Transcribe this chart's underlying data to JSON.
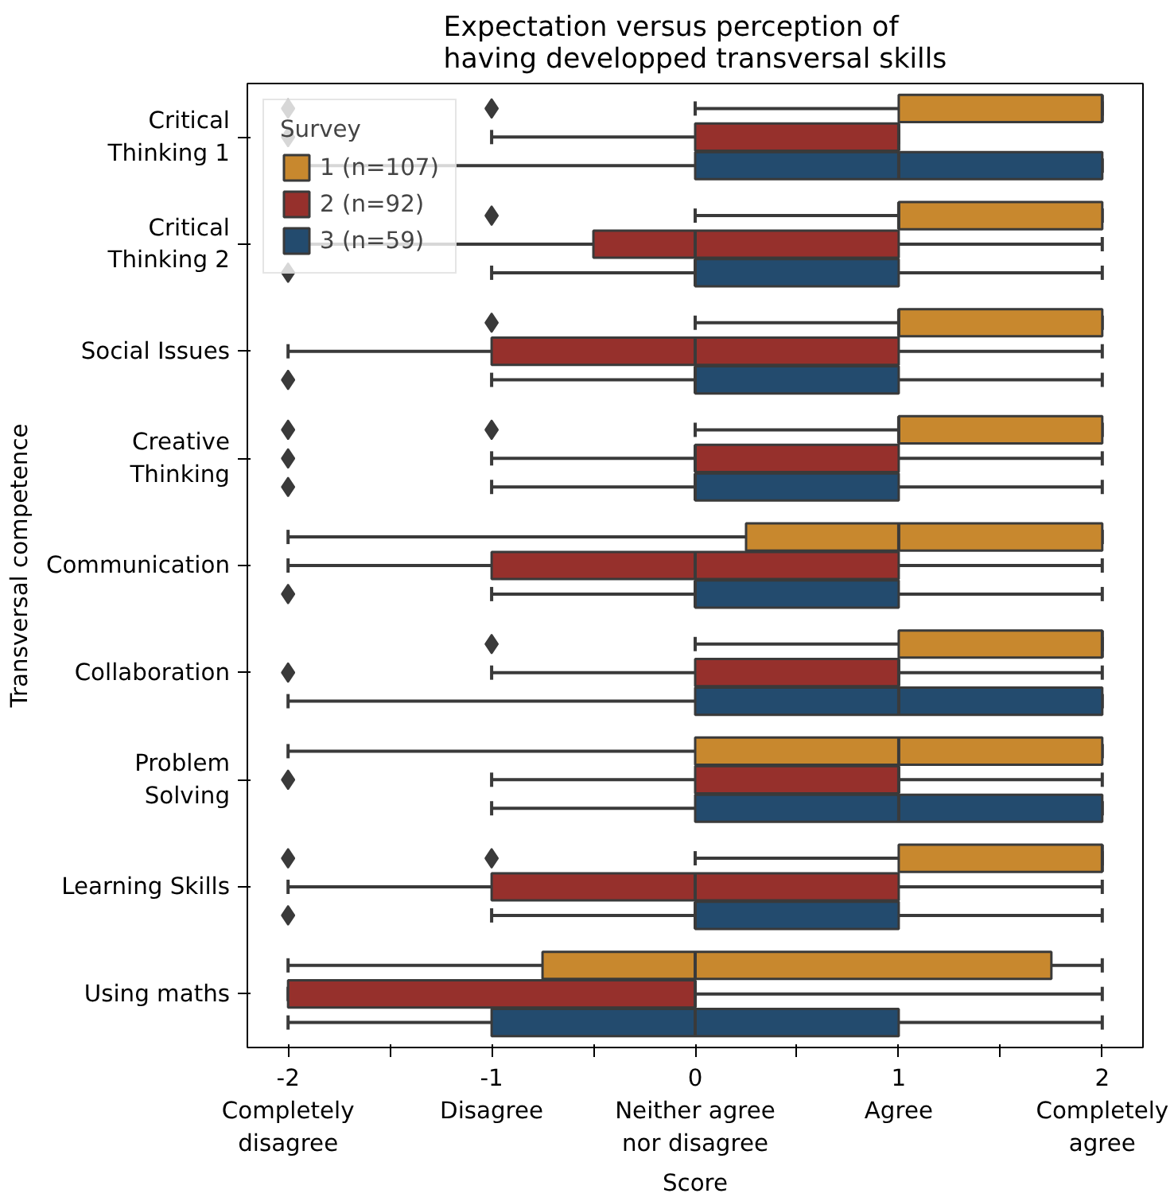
{
  "chart_data": {
    "type": "box",
    "orientation": "horizontal",
    "title": "Expectation versus perception of\nhaving developped transversal skills",
    "xlabel": "Score",
    "ylabel": "Transversal competence",
    "legend_title": "Survey",
    "legend": "top left",
    "grid": false,
    "marker": "diamond",
    "categories": [
      "Critical\nThinking 1",
      "Critical\nThinking 2",
      "Social Issues",
      "Creative\nThinking",
      "Communication",
      "Collaboration",
      "Problem\nSolving",
      "Learning Skills",
      "Using maths"
    ],
    "xlim": [
      -2.2,
      2.2
    ],
    "xticks": [
      {
        "value": -2,
        "label": "-2\nCompletely\ndisagree"
      },
      {
        "value": -1.5,
        "label": null
      },
      {
        "value": -1,
        "label": "-1\nDisagree"
      },
      {
        "value": -0.5,
        "label": null
      },
      {
        "value": 0,
        "label": "0\nNeither agree\nnor disagree"
      },
      {
        "value": 0.5,
        "label": null
      },
      {
        "value": 1,
        "label": "1\nAgree"
      },
      {
        "value": 1.5,
        "label": null
      },
      {
        "value": 2,
        "label": "2\nCompletely\nagree"
      }
    ],
    "series": [
      {
        "name": "1 (n=107)",
        "color": "#c8882e",
        "boxes": [
          {
            "low": 0,
            "q1": 1,
            "median": 2,
            "q3": 2,
            "high": 2,
            "outliers": [
              -2,
              -1
            ]
          },
          {
            "low": 0,
            "q1": 1,
            "median": 1,
            "q3": 2,
            "high": 2,
            "outliers": [
              -1
            ]
          },
          {
            "low": 0,
            "q1": 1,
            "median": 1,
            "q3": 2,
            "high": 2,
            "outliers": [
              -1
            ]
          },
          {
            "low": 0,
            "q1": 1,
            "median": 1,
            "q3": 2,
            "high": 2,
            "outliers": [
              -2,
              -1
            ]
          },
          {
            "low": -2,
            "q1": 0.25,
            "median": 1,
            "q3": 2,
            "high": 2
          },
          {
            "low": 0,
            "q1": 1,
            "median": 2,
            "q3": 2,
            "high": 2,
            "outliers": [
              -1
            ]
          },
          {
            "low": -2,
            "q1": 0,
            "median": 1,
            "q3": 2,
            "high": 2
          },
          {
            "low": 0,
            "q1": 1,
            "median": 2,
            "q3": 2,
            "high": 2,
            "outliers": [
              -2,
              -1
            ]
          },
          {
            "low": -2,
            "q1": -0.75,
            "median": 0,
            "q3": 1.75,
            "high": 2
          }
        ]
      },
      {
        "name": "2 (n=92)",
        "color": "#96302c",
        "boxes": [
          {
            "low": -1,
            "q1": 0,
            "median": 1,
            "q3": 1,
            "high": 1,
            "outliers": [
              -2
            ]
          },
          {
            "low": -2,
            "q1": -0.5,
            "median": 0,
            "q3": 1,
            "high": 2
          },
          {
            "low": -2,
            "q1": -1,
            "median": 0,
            "q3": 1,
            "high": 2
          },
          {
            "low": -1,
            "q1": 0,
            "median": 0,
            "q3": 1,
            "high": 2,
            "outliers": [
              -2
            ]
          },
          {
            "low": -2,
            "q1": -1,
            "median": 0,
            "q3": 1,
            "high": 2
          },
          {
            "low": -1,
            "q1": 0,
            "median": 1,
            "q3": 1,
            "high": 2,
            "outliers": [
              -2
            ]
          },
          {
            "low": -1,
            "q1": 0,
            "median": 1,
            "q3": 1,
            "high": 2,
            "outliers": [
              -2
            ]
          },
          {
            "low": -2,
            "q1": -1,
            "median": 0,
            "q3": 1,
            "high": 2
          },
          {
            "low": -2,
            "q1": -2,
            "median": 0,
            "q3": 0,
            "high": 2
          }
        ]
      },
      {
        "name": "3 (n=59)",
        "color": "#234b6e",
        "boxes": [
          {
            "low": -2,
            "q1": 0,
            "median": 1,
            "q3": 2,
            "high": 2
          },
          {
            "low": -1,
            "q1": 0,
            "median": 0,
            "q3": 1,
            "high": 2,
            "outliers": [
              -2
            ]
          },
          {
            "low": -1,
            "q1": 0,
            "median": 0,
            "q3": 1,
            "high": 2,
            "outliers": [
              -2
            ]
          },
          {
            "low": -1,
            "q1": 0,
            "median": 0,
            "q3": 1,
            "high": 2,
            "outliers": [
              -2
            ]
          },
          {
            "low": -1,
            "q1": 0,
            "median": 0,
            "q3": 1,
            "high": 2,
            "outliers": [
              -2
            ]
          },
          {
            "low": -2,
            "q1": 0,
            "median": 1,
            "q3": 2,
            "high": 2
          },
          {
            "low": -1,
            "q1": 0,
            "median": 1,
            "q3": 2,
            "high": 2
          },
          {
            "low": -1,
            "q1": 0,
            "median": 0,
            "q3": 1,
            "high": 2,
            "outliers": [
              -2
            ]
          },
          {
            "low": -2,
            "q1": -1,
            "median": 0,
            "q3": 1,
            "high": 2
          }
        ]
      }
    ]
  }
}
